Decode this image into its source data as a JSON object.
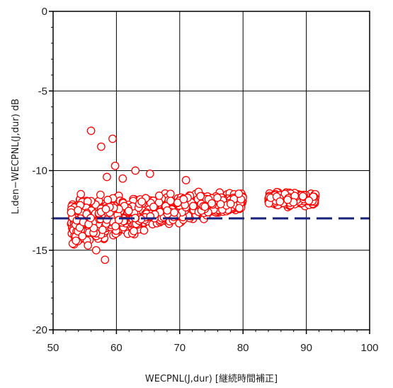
{
  "chart_data": {
    "type": "scatter",
    "title": "",
    "xlabel": "WECPNL(J,dur) [継続時間補正]",
    "ylabel": "L.den−WECPNL(J,dur)  dB",
    "xlim": [
      50,
      100
    ],
    "ylim": [
      -20,
      0
    ],
    "x_ticks": [
      "50",
      "60",
      "70",
      "80",
      "90",
      "100"
    ],
    "y_ticks": [
      "0",
      "-5",
      "-10",
      "-15",
      "-20"
    ],
    "grid": true,
    "marker": "open-circle",
    "marker_color": "#ff0000",
    "reference_line": {
      "y": -13,
      "style": "dashed",
      "color": "#1a237e",
      "x_range": [
        50,
        100
      ]
    },
    "clusters": [
      {
        "x_range": [
          52.8,
          80.0
        ],
        "y_center": -12.6,
        "count": 1100
      },
      {
        "x_range": [
          84.0,
          91.5
        ],
        "y_center": -11.8,
        "count": 220
      }
    ],
    "outliers": [
      [
        56.0,
        -7.5
      ],
      [
        57.6,
        -8.5
      ],
      [
        59.4,
        -8.0
      ],
      [
        59.8,
        -9.7
      ],
      [
        58.2,
        -15.6
      ],
      [
        56.8,
        -15.0
      ],
      [
        55.5,
        -14.7
      ],
      [
        53.6,
        -14.4
      ],
      [
        58.5,
        -10.4
      ],
      [
        61.0,
        -10.5
      ],
      [
        63.0,
        -10.0
      ],
      [
        65.3,
        -10.2
      ],
      [
        71.0,
        -10.6
      ]
    ]
  }
}
